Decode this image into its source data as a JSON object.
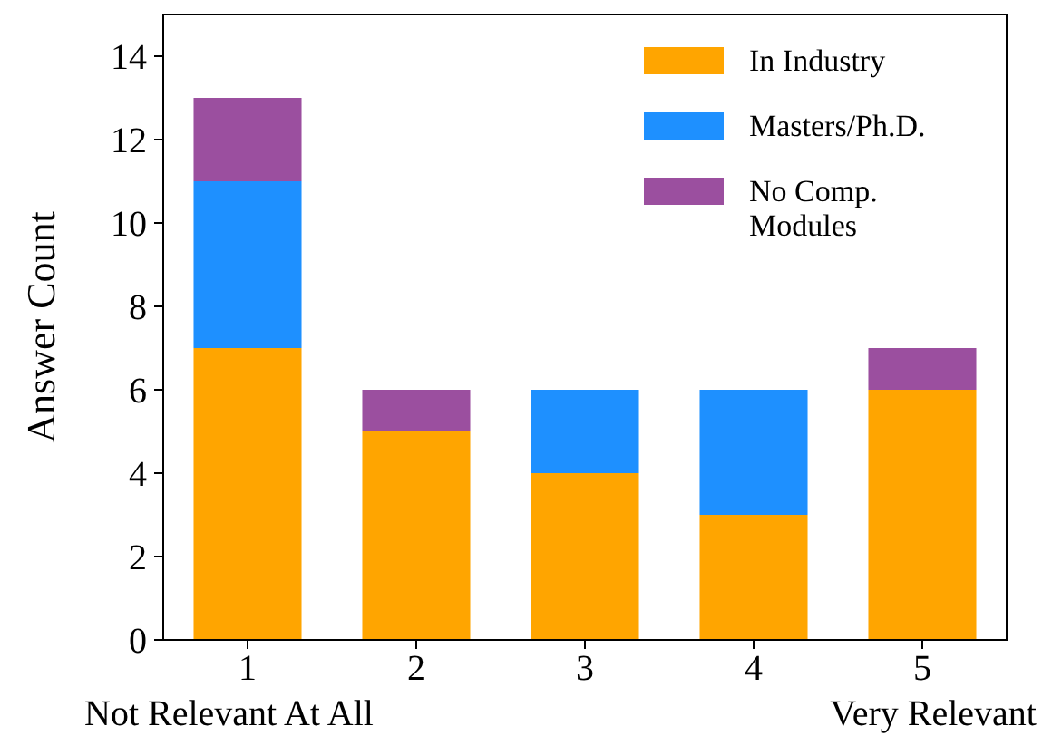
{
  "chart_data": {
    "type": "bar",
    "stacked": true,
    "ylabel": "Answer Count",
    "categories": [
      "1",
      "2",
      "3",
      "4",
      "5"
    ],
    "series": [
      {
        "name": "In Industry",
        "color": "#ffa500",
        "values": [
          7,
          5,
          4,
          3,
          6
        ]
      },
      {
        "name": "Masters/Ph.D.",
        "color": "#1e90ff",
        "values": [
          4,
          0,
          2,
          3,
          0
        ]
      },
      {
        "name": "No Comp. Modules",
        "color": "#9b4f9f",
        "values": [
          2,
          1,
          0,
          0,
          1
        ]
      }
    ],
    "ylim": [
      0,
      15
    ],
    "yticks": [
      0,
      2,
      4,
      6,
      8,
      10,
      12,
      14
    ],
    "grid": false,
    "legend": "top right",
    "annotations": [
      "Not Relevant At All",
      "Very Relevant"
    ]
  }
}
